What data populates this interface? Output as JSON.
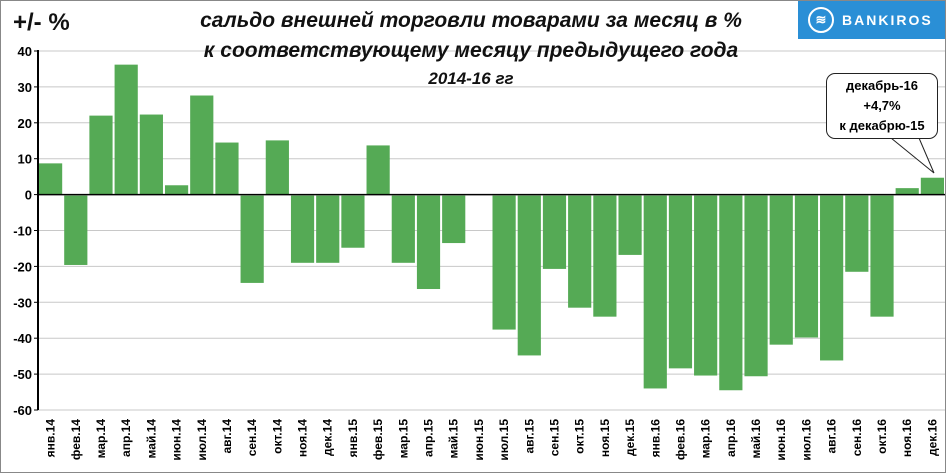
{
  "header": {
    "y_unit": "+/- %",
    "title_line1": "сальдо внешней торговли товарами за месяц в %",
    "title_line2": "к соответствующему месяцу предыдущего года",
    "title_line3": "2014-16 гг",
    "logo_text": "BANKIROS"
  },
  "callout": {
    "line1": "декабрь-16",
    "line2": "+4,7%",
    "line3": "к декабрю-15"
  },
  "colors": {
    "bar": "#55aa55",
    "grid": "#c8c8c8",
    "logo": "#2a8fd6"
  },
  "chart_data": {
    "type": "bar",
    "title": "сальдо внешней торговли товарами за месяц в % к соответствующему месяцу предыдущего года 2014-16 гг",
    "ylabel": "+/- %",
    "xlabel": "",
    "ylim": [
      -60,
      40
    ],
    "yticks": [
      40,
      30,
      20,
      10,
      0,
      -10,
      -20,
      -30,
      -40,
      -50,
      -60
    ],
    "grid": true,
    "categories": [
      "янв.14",
      "фев.14",
      "мар.14",
      "апр.14",
      "май.14",
      "июн.14",
      "июл.14",
      "авг.14",
      "сен.14",
      "окт.14",
      "ноя.14",
      "дек.14",
      "янв.15",
      "фев.15",
      "мар.15",
      "апр.15",
      "май.15",
      "июн.15",
      "июл.15",
      "авг.15",
      "сен.15",
      "окт.15",
      "ноя.15",
      "дек.15",
      "янв.16",
      "фев.16",
      "мар.16",
      "апр.16",
      "май.16",
      "июн.16",
      "июл.16",
      "авг.16",
      "сен.16",
      "окт.16",
      "ноя.16",
      "дек.16"
    ],
    "values": [
      8.7,
      -19.6,
      22.0,
      36.2,
      22.3,
      2.6,
      27.6,
      14.5,
      -24.6,
      15.1,
      -19.0,
      -19.0,
      -14.8,
      13.7,
      -19.0,
      -26.3,
      -13.5,
      0,
      -37.6,
      -44.8,
      -20.7,
      -31.5,
      -34.0,
      -16.8,
      -54.0,
      -48.4,
      -50.4,
      -54.5,
      -50.6,
      -41.8,
      -39.8,
      -46.2,
      -21.5,
      -34.0,
      1.8,
      4.7
    ]
  }
}
